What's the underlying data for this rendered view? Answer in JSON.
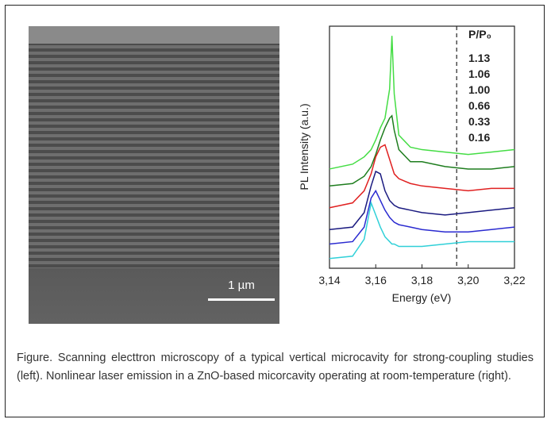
{
  "sem": {
    "scale_label": "1 µm"
  },
  "chart_data": {
    "type": "line",
    "x_label": "Energy (eV)",
    "y_label": "PL Intensity (a.u.)",
    "legend_title": "P/P₀",
    "legend": "upper right",
    "x": [
      3.14,
      3.15,
      3.155,
      3.158,
      3.16,
      3.162,
      3.164,
      3.166,
      3.167,
      3.168,
      3.17,
      3.175,
      3.18,
      3.19,
      3.2,
      3.21,
      3.22
    ],
    "series": [
      {
        "name": "1.13",
        "color": "#44dd44",
        "values": [
          4.1,
          4.3,
          4.6,
          4.9,
          5.3,
          5.8,
          6.2,
          7.4,
          9.6,
          7.2,
          5.5,
          5.0,
          4.9,
          4.8,
          4.7,
          4.8,
          4.9
        ]
      },
      {
        "name": "1.06",
        "color": "#1e7d1e",
        "values": [
          3.4,
          3.5,
          3.8,
          4.2,
          4.7,
          5.3,
          5.8,
          6.2,
          6.3,
          5.7,
          4.9,
          4.4,
          4.4,
          4.2,
          4.1,
          4.1,
          4.2
        ]
      },
      {
        "name": "1.00",
        "color": "#e02020",
        "values": [
          2.5,
          2.7,
          3.2,
          3.9,
          4.6,
          5.0,
          5.1,
          4.5,
          4.2,
          3.9,
          3.7,
          3.5,
          3.4,
          3.3,
          3.2,
          3.3,
          3.3
        ]
      },
      {
        "name": "0.66",
        "color": "#1a1a80",
        "values": [
          1.6,
          1.7,
          2.3,
          3.4,
          4.0,
          3.9,
          3.2,
          2.8,
          2.7,
          2.6,
          2.5,
          2.4,
          2.3,
          2.2,
          2.3,
          2.4,
          2.5
        ]
      },
      {
        "name": "0.33",
        "color": "#2a2ad0",
        "values": [
          1.0,
          1.1,
          1.7,
          2.9,
          3.2,
          2.8,
          2.4,
          2.1,
          2.0,
          1.9,
          1.8,
          1.7,
          1.6,
          1.5,
          1.5,
          1.6,
          1.7
        ]
      },
      {
        "name": "0.16",
        "color": "#30d0d8",
        "values": [
          0.4,
          0.5,
          1.2,
          2.7,
          2.2,
          1.7,
          1.3,
          1.1,
          1.0,
          1.0,
          0.9,
          0.9,
          0.9,
          1.0,
          1.1,
          1.1,
          1.1
        ]
      }
    ],
    "xlim": [
      3.14,
      3.22
    ],
    "xticks": [
      {
        "value": 3.14,
        "label": "3,14"
      },
      {
        "value": 3.16,
        "label": "3,16"
      },
      {
        "value": 3.18,
        "label": "3,18"
      },
      {
        "value": 3.2,
        "label": "3,20"
      },
      {
        "value": 3.22,
        "label": "3,22"
      }
    ],
    "ylim": [
      0,
      10
    ],
    "vline": 3.195
  },
  "caption": "Figure. Scanning electtron microscopy of a typical vertical microcavity for strong-coupling studies (left). Nonlinear laser emission in a ZnO-based micorcavity operating at room-temperature (right)."
}
